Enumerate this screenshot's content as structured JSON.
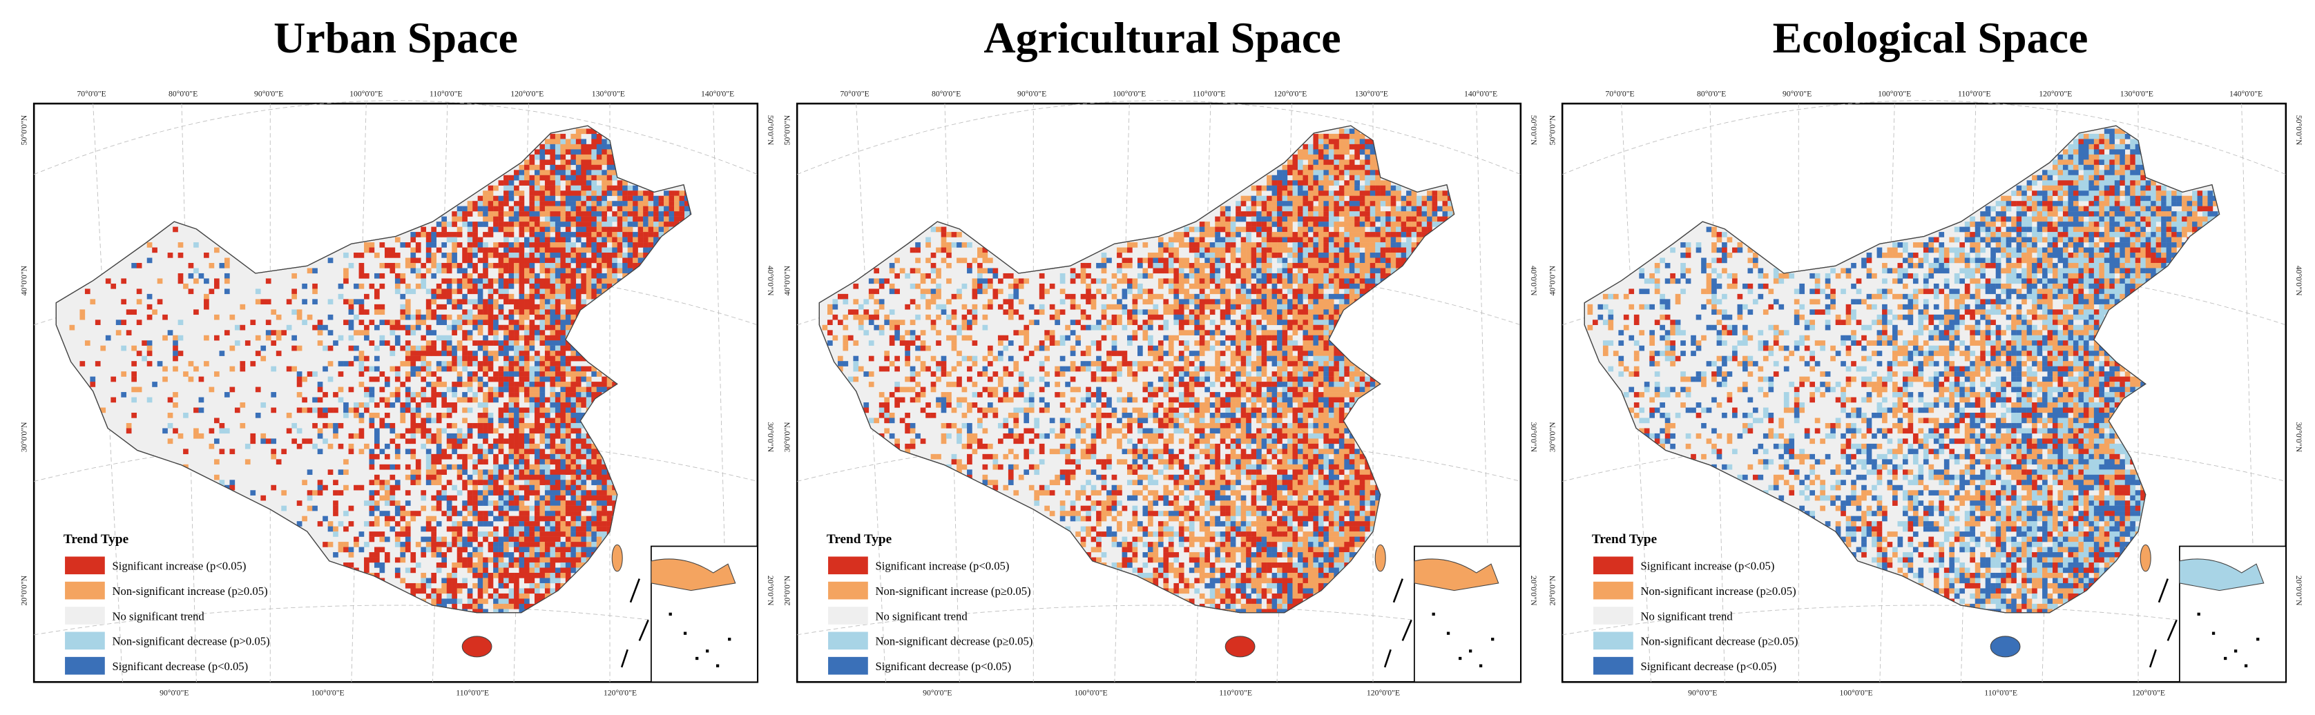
{
  "panels": [
    {
      "title": "Urban Space",
      "legend": {
        "title": "Trend Type",
        "items": [
          "Significant increase (p<0.05)",
          "Non-significant increase (p≥0.05)",
          "No significant trend",
          "Non-significant decrease (p>0.05)",
          "Significant decrease (p<0.05)"
        ]
      }
    },
    {
      "title": "Agricultural Space",
      "legend": {
        "title": "Trend Type",
        "items": [
          "Significant increase (p<0.05)",
          "Non-significant increase (p≥0.05)",
          "No significant trend",
          "Non-significant decrease (p≥0.05)",
          "Significant decrease (p<0.05)"
        ]
      }
    },
    {
      "title": "Ecological Space",
      "legend": {
        "title": "Trend Type",
        "items": [
          "Significant increase (p<0.05)",
          "Non-significant increase (p≥0.05)",
          "No significant trend",
          "Non-significant decrease (p≥0.05)",
          "Significant decrease (p<0.05)"
        ]
      }
    }
  ],
  "legend_colors": [
    "#d7301f",
    "#f4a460",
    "#efefef",
    "#a8d4e6",
    "#3a70b8"
  ],
  "graticule": {
    "top": [
      "70°0'0\"E",
      "80°0'0\"E",
      "90°0'0\"E",
      "100°0'0\"E",
      "110°0'0\"E",
      "120°0'0\"E",
      "130°0'0\"E",
      "140°0'0\"E"
    ],
    "left": [
      "50°0'0\"N",
      "40°0'0\"N",
      "30°0'0\"N",
      "20°0'0\"N"
    ],
    "bottom": [
      "90°0'0\"E",
      "100°0'0\"E",
      "110°0'0\"E",
      "120°0'0\"E"
    ]
  }
}
